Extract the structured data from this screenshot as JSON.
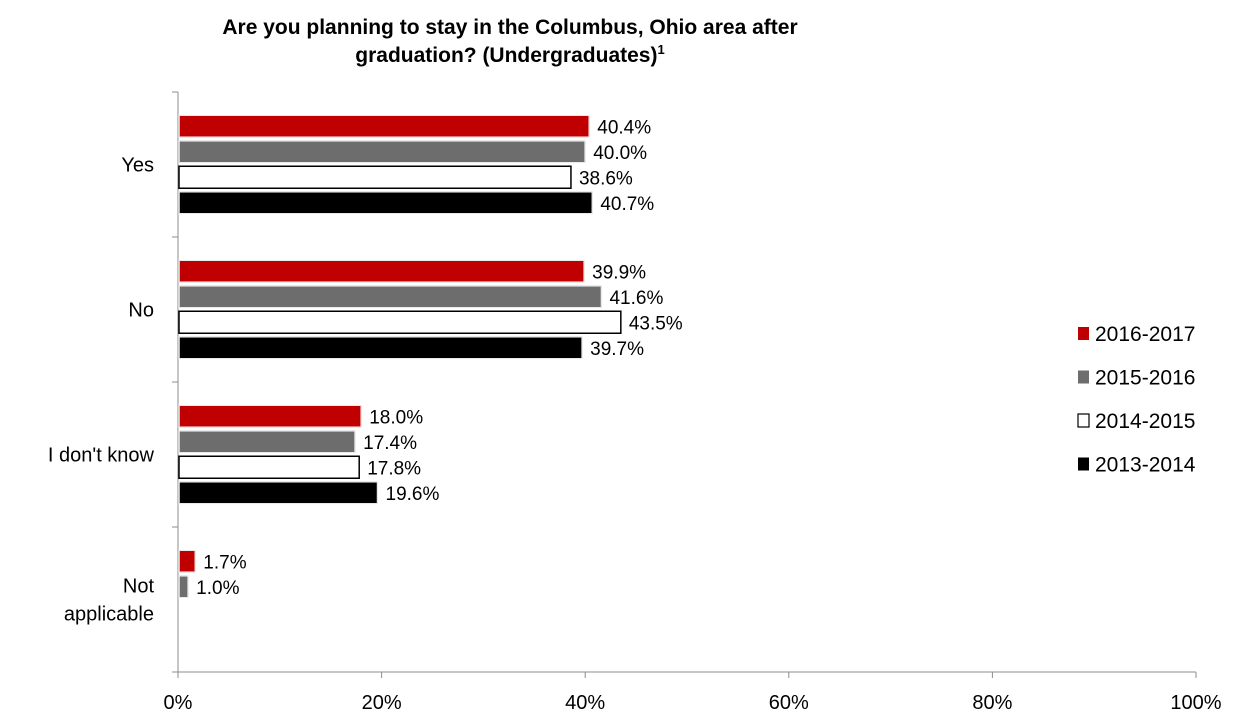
{
  "chart_data": {
    "type": "bar",
    "orientation": "horizontal",
    "title": "Are you planning to stay in the Columbus, Ohio area after graduation? (Undergraduates)",
    "title_line1": "Are you planning to stay in the Columbus, Ohio area after",
    "title_line2": "graduation? (Undergraduates)",
    "title_superscript": "1",
    "categories": [
      "Yes",
      "No",
      "I don't know",
      "Not applicable"
    ],
    "category_lines": [
      [
        "Yes"
      ],
      [
        "No"
      ],
      [
        "I don't know"
      ],
      [
        "Not",
        "applicable"
      ]
    ],
    "series": [
      {
        "name": "2016-2017",
        "color": "#c00000",
        "values": [
          40.4,
          39.9,
          18.0,
          1.7
        ],
        "labels": [
          "40.4%",
          "39.9%",
          "18.0%",
          "1.7%"
        ]
      },
      {
        "name": "2015-2016",
        "color": "#6d6d6d",
        "values": [
          40.0,
          41.6,
          17.4,
          1.0
        ],
        "labels": [
          "40.0%",
          "41.6%",
          "17.4%",
          "1.0%"
        ]
      },
      {
        "name": "2014-2015",
        "color": "#ffffff",
        "values": [
          38.6,
          43.5,
          17.8,
          null
        ],
        "labels": [
          "38.6%",
          "43.5%",
          "17.8%",
          ""
        ]
      },
      {
        "name": "2013-2014",
        "color": "#000000",
        "values": [
          40.7,
          39.7,
          19.6,
          null
        ],
        "labels": [
          "40.7%",
          "39.7%",
          "19.6%",
          ""
        ]
      }
    ],
    "xlim": [
      0,
      100
    ],
    "x_ticks": [
      "0%",
      "20%",
      "40%",
      "60%",
      "80%",
      "100%"
    ],
    "xlabel": "",
    "ylabel": "",
    "grid": false,
    "legend_position": "right"
  }
}
